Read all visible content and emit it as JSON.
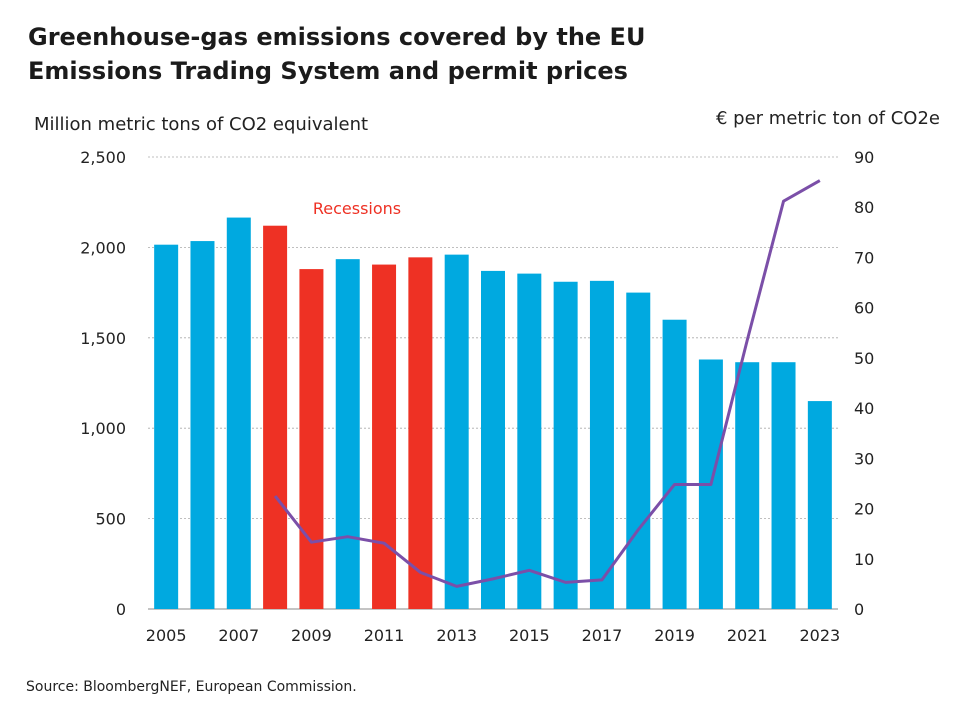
{
  "title_line1": "Greenhouse-gas emissions covered by the EU",
  "title_line2": "Emissions Trading System and permit prices",
  "source": "Source: BloombergNEF, European Commission.",
  "chart_data": {
    "type": "bar",
    "ylabel": "Million metric tons of CO2 equivalent",
    "y2label": "€ per metric ton of CO2e",
    "ylim": [
      0,
      2500
    ],
    "y2lim": [
      0,
      90
    ],
    "yticks": [
      0,
      500,
      1000,
      1500,
      2000,
      2500
    ],
    "ytick_labels": [
      "0",
      "500",
      "1,000",
      "1,500",
      "2,000",
      "2,500"
    ],
    "y2ticks": [
      0,
      10,
      20,
      30,
      40,
      50,
      60,
      70,
      80,
      90
    ],
    "y2tick_labels": [
      "0",
      "10",
      "20",
      "30",
      "40",
      "50",
      "60",
      "70",
      "80",
      "90"
    ],
    "grid": true,
    "categories": [
      "2005",
      "2006",
      "2007",
      "2008",
      "2009",
      "2010",
      "2011",
      "2012",
      "2013",
      "2014",
      "2015",
      "2016",
      "2017",
      "2018",
      "2019",
      "2020",
      "2021",
      "2022",
      "2023"
    ],
    "xtick_labels": [
      "2005",
      "2007",
      "2009",
      "2011",
      "2013",
      "2015",
      "2017",
      "2019",
      "2021",
      "2023"
    ],
    "series": [
      {
        "kind": "bar",
        "axis": "left",
        "values": [
          2015,
          2035,
          2165,
          2120,
          1880,
          1935,
          1905,
          1945,
          1960,
          1870,
          1855,
          1810,
          1815,
          1750,
          1600,
          1380,
          1365,
          1365,
          1150
        ],
        "color": "#00a9e0"
      },
      {
        "kind": "line",
        "axis": "right",
        "x": [
          "2008",
          "2009",
          "2010",
          "2011",
          "2012",
          "2013",
          "2014",
          "2015",
          "2016",
          "2017",
          "2018",
          "2019",
          "2020",
          "2021",
          "2022",
          "2023"
        ],
        "values": [
          22.5,
          13.3,
          14.4,
          13.1,
          7.3,
          4.5,
          6.0,
          7.7,
          5.3,
          5.8,
          15.8,
          24.8,
          24.8,
          53.5,
          81.2,
          85.3
        ],
        "color": "#7b4fa8"
      }
    ],
    "recession_years": [
      "2008",
      "2009",
      "2011",
      "2012"
    ],
    "recession_color": "#ee3124",
    "annotation": "Recessions",
    "annotation_color": "#ee3124"
  }
}
